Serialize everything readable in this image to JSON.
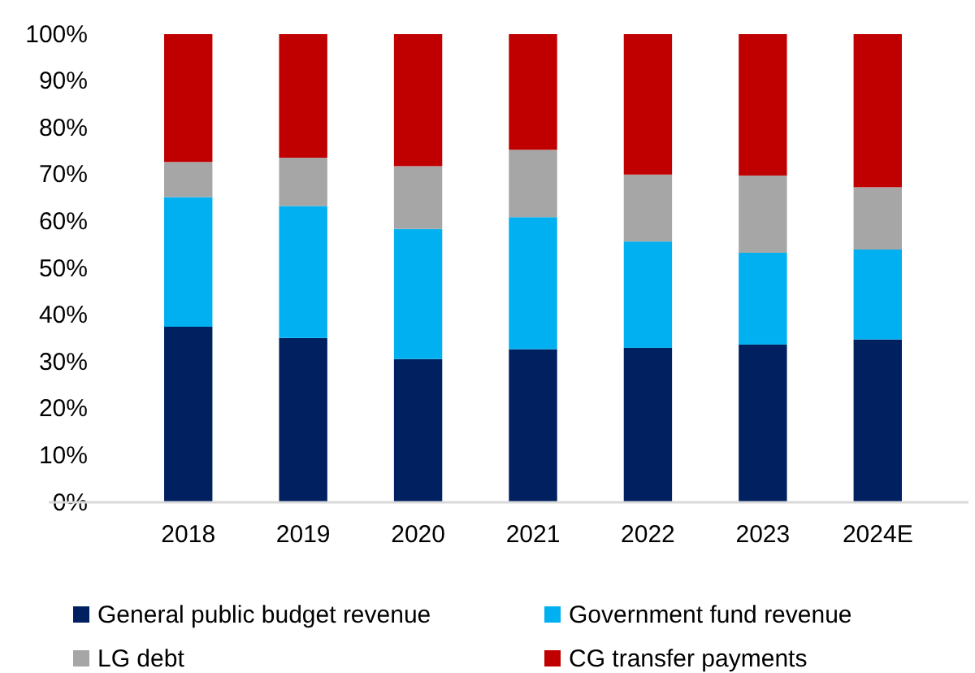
{
  "chart_data": {
    "type": "bar",
    "stacked": true,
    "categories": [
      "2018",
      "2019",
      "2020",
      "2021",
      "2022",
      "2023",
      "2024E"
    ],
    "series": [
      {
        "name": "General public budget revenue",
        "color": "#002060",
        "values": [
          37.5,
          35.1,
          30.6,
          32.7,
          33.0,
          33.7,
          34.8
        ]
      },
      {
        "name": "Government fund revenue",
        "color": "#00b0f0",
        "values": [
          27.7,
          28.2,
          27.8,
          28.2,
          22.7,
          19.6,
          19.2
        ]
      },
      {
        "name": "LG debt",
        "color": "#a6a6a6",
        "values": [
          7.5,
          10.3,
          13.4,
          14.4,
          14.3,
          16.5,
          13.3
        ]
      },
      {
        "name": "CG transfer payments",
        "color": "#c00000",
        "values": [
          27.3,
          26.4,
          28.2,
          24.7,
          30.0,
          30.2,
          32.7
        ]
      }
    ],
    "ylim": [
      0,
      100
    ],
    "yticks": [
      {
        "value": 0,
        "label": "0%"
      },
      {
        "value": 10,
        "label": "10%"
      },
      {
        "value": 20,
        "label": "20%"
      },
      {
        "value": 30,
        "label": "30%"
      },
      {
        "value": 40,
        "label": "40%"
      },
      {
        "value": 50,
        "label": "50%"
      },
      {
        "value": 60,
        "label": "60%"
      },
      {
        "value": 70,
        "label": "70%"
      },
      {
        "value": 80,
        "label": "80%"
      },
      {
        "value": 90,
        "label": "90%"
      },
      {
        "value": 100,
        "label": "100%"
      }
    ],
    "legend": "bottom"
  }
}
